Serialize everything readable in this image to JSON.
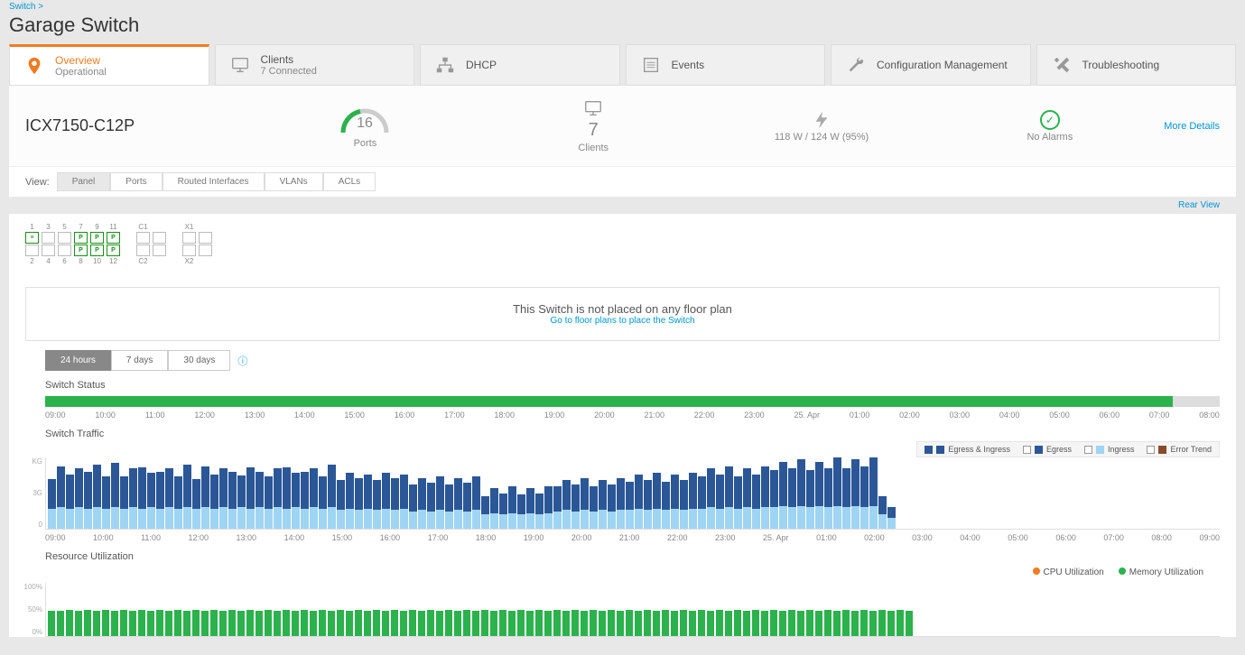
{
  "breadcrumb": {
    "parent": "Switch >"
  },
  "page_title": "Garage Switch",
  "tabs": [
    {
      "title": "Overview",
      "sub": "Operational",
      "icon": "location",
      "color": "#f47b20"
    },
    {
      "title": "Clients",
      "sub": "7 Connected",
      "icon": "monitor",
      "color": "#999"
    },
    {
      "title": "DHCP",
      "sub": "",
      "icon": "network",
      "color": "#999"
    },
    {
      "title": "Events",
      "sub": "",
      "icon": "list",
      "color": "#999"
    },
    {
      "title": "Configuration Management",
      "sub": "",
      "icon": "wrench",
      "color": "#999"
    },
    {
      "title": "Troubleshooting",
      "sub": "",
      "icon": "tools",
      "color": "#999"
    }
  ],
  "summary": {
    "model": "ICX7150-C12P",
    "ports": {
      "value": "16",
      "label": "Ports",
      "arc_color": "#2bb24c",
      "arc_bg": "#ccc",
      "arc_pct": 40
    },
    "clients": {
      "value": "7",
      "label": "Clients"
    },
    "power": {
      "text": "118 W / 124 W (95%)"
    },
    "alarms": {
      "text": "No Alarms"
    },
    "more": "More Details"
  },
  "view": {
    "label": "View:",
    "tabs": [
      "Panel",
      "Ports",
      "Routed Interfaces",
      "VLANs",
      "ACLs"
    ],
    "active": 0,
    "rear": "Rear View"
  },
  "ports_panel": {
    "top_labels": [
      "1",
      "3",
      "5",
      "7",
      "9",
      "11"
    ],
    "bot_labels": [
      "2",
      "4",
      "6",
      "8",
      "10",
      "12"
    ],
    "row1": [
      {
        "on": true,
        "t": "≡"
      },
      {
        "on": false
      },
      {
        "on": false
      },
      {
        "on": true,
        "t": "P"
      },
      {
        "on": true,
        "t": "P"
      },
      {
        "on": true,
        "t": "P"
      }
    ],
    "row2": [
      {
        "on": false
      },
      {
        "on": false
      },
      {
        "on": false
      },
      {
        "on": true,
        "t": "P"
      },
      {
        "on": true,
        "t": "P"
      },
      {
        "on": true,
        "t": "P"
      }
    ],
    "c": {
      "label_top": "C1",
      "label_bot": "C2",
      "r1": [
        {
          "on": false
        },
        {
          "on": false
        }
      ],
      "r2": [
        {
          "on": false
        },
        {
          "on": false
        }
      ]
    },
    "x": {
      "label_top": "X1",
      "label_bot": "X2",
      "r1": [
        {
          "on": false
        },
        {
          "on": false
        }
      ],
      "r2": [
        {
          "on": false
        },
        {
          "on": false
        }
      ]
    }
  },
  "floorplan": {
    "msg": "This Switch is not placed on any floor plan",
    "link": "Go to floor plans to place the Switch"
  },
  "time_tabs": {
    "options": [
      "24 hours",
      "7 days",
      "30 days"
    ],
    "active": 0
  },
  "status_chart": {
    "title": "Switch Status",
    "fill_color": "#2bb24c",
    "fill_pct": 96,
    "axis": [
      "09:00",
      "10:00",
      "11:00",
      "12:00",
      "13:00",
      "14:00",
      "15:00",
      "16:00",
      "17:00",
      "18:00",
      "19:00",
      "20:00",
      "21:00",
      "22:00",
      "23:00",
      "25. Apr",
      "01:00",
      "02:00",
      "03:00",
      "04:00",
      "05:00",
      "06:00",
      "07:00",
      "08:00"
    ]
  },
  "traffic_chart": {
    "title": "Switch Traffic",
    "y_unit": "KG",
    "y_ticks": [
      "KG",
      "3G",
      "0"
    ],
    "legend": [
      {
        "label": "Egress & Ingress",
        "color": "#2b5797",
        "checked": true
      },
      {
        "label": "Egress",
        "color": "#2b5797",
        "checked": false
      },
      {
        "label": "Ingress",
        "color": "#9fd4f3",
        "checked": false
      },
      {
        "label": "Error Trend",
        "color": "#8b4a2b",
        "checked": false
      }
    ],
    "colors": {
      "egress": "#2b5797",
      "ingress": "#9fd4f3"
    },
    "axis": [
      "09:00",
      "10:00",
      "11:00",
      "12:00",
      "13:00",
      "14:00",
      "15:00",
      "16:00",
      "17:00",
      "18:00",
      "19:00",
      "20:00",
      "21:00",
      "22:00",
      "23:00",
      "25. Apr",
      "01:00",
      "02:00",
      "03:00",
      "04:00",
      "05:00",
      "06:00",
      "07:00",
      "08:00",
      "09:00"
    ],
    "bars": [
      {
        "e": 42,
        "i": 28
      },
      {
        "e": 58,
        "i": 30
      },
      {
        "e": 48,
        "i": 28
      },
      {
        "e": 55,
        "i": 30
      },
      {
        "e": 52,
        "i": 28
      },
      {
        "e": 60,
        "i": 30
      },
      {
        "e": 45,
        "i": 28
      },
      {
        "e": 62,
        "i": 30
      },
      {
        "e": 45,
        "i": 28
      },
      {
        "e": 55,
        "i": 30
      },
      {
        "e": 58,
        "i": 28
      },
      {
        "e": 48,
        "i": 30
      },
      {
        "e": 52,
        "i": 28
      },
      {
        "e": 55,
        "i": 30
      },
      {
        "e": 45,
        "i": 28
      },
      {
        "e": 60,
        "i": 30
      },
      {
        "e": 42,
        "i": 28
      },
      {
        "e": 58,
        "i": 30
      },
      {
        "e": 48,
        "i": 28
      },
      {
        "e": 55,
        "i": 30
      },
      {
        "e": 52,
        "i": 28
      },
      {
        "e": 45,
        "i": 30
      },
      {
        "e": 58,
        "i": 28
      },
      {
        "e": 50,
        "i": 30
      },
      {
        "e": 45,
        "i": 28
      },
      {
        "e": 55,
        "i": 30
      },
      {
        "e": 58,
        "i": 28
      },
      {
        "e": 48,
        "i": 30
      },
      {
        "e": 52,
        "i": 28
      },
      {
        "e": 55,
        "i": 30
      },
      {
        "e": 45,
        "i": 28
      },
      {
        "e": 60,
        "i": 30
      },
      {
        "e": 42,
        "i": 26
      },
      {
        "e": 50,
        "i": 28
      },
      {
        "e": 45,
        "i": 26
      },
      {
        "e": 48,
        "i": 28
      },
      {
        "e": 42,
        "i": 26
      },
      {
        "e": 50,
        "i": 28
      },
      {
        "e": 45,
        "i": 26
      },
      {
        "e": 48,
        "i": 28
      },
      {
        "e": 38,
        "i": 24
      },
      {
        "e": 45,
        "i": 26
      },
      {
        "e": 40,
        "i": 24
      },
      {
        "e": 48,
        "i": 26
      },
      {
        "e": 38,
        "i": 24
      },
      {
        "e": 45,
        "i": 26
      },
      {
        "e": 40,
        "i": 24
      },
      {
        "e": 48,
        "i": 26
      },
      {
        "e": 25,
        "i": 20
      },
      {
        "e": 35,
        "i": 22
      },
      {
        "e": 30,
        "i": 20
      },
      {
        "e": 38,
        "i": 22
      },
      {
        "e": 28,
        "i": 20
      },
      {
        "e": 35,
        "i": 22
      },
      {
        "e": 30,
        "i": 20
      },
      {
        "e": 38,
        "i": 22
      },
      {
        "e": 35,
        "i": 24
      },
      {
        "e": 42,
        "i": 26
      },
      {
        "e": 38,
        "i": 24
      },
      {
        "e": 45,
        "i": 26
      },
      {
        "e": 35,
        "i": 24
      },
      {
        "e": 42,
        "i": 26
      },
      {
        "e": 38,
        "i": 24
      },
      {
        "e": 45,
        "i": 26
      },
      {
        "e": 40,
        "i": 26
      },
      {
        "e": 48,
        "i": 28
      },
      {
        "e": 42,
        "i": 26
      },
      {
        "e": 50,
        "i": 28
      },
      {
        "e": 40,
        "i": 26
      },
      {
        "e": 48,
        "i": 28
      },
      {
        "e": 42,
        "i": 26
      },
      {
        "e": 50,
        "i": 28
      },
      {
        "e": 45,
        "i": 28
      },
      {
        "e": 55,
        "i": 30
      },
      {
        "e": 48,
        "i": 28
      },
      {
        "e": 58,
        "i": 30
      },
      {
        "e": 45,
        "i": 28
      },
      {
        "e": 55,
        "i": 30
      },
      {
        "e": 48,
        "i": 28
      },
      {
        "e": 58,
        "i": 30
      },
      {
        "e": 52,
        "i": 30
      },
      {
        "e": 62,
        "i": 32
      },
      {
        "e": 55,
        "i": 30
      },
      {
        "e": 65,
        "i": 32
      },
      {
        "e": 52,
        "i": 30
      },
      {
        "e": 62,
        "i": 32
      },
      {
        "e": 55,
        "i": 30
      },
      {
        "e": 68,
        "i": 32
      },
      {
        "e": 55,
        "i": 30
      },
      {
        "e": 65,
        "i": 32
      },
      {
        "e": 58,
        "i": 30
      },
      {
        "e": 70,
        "i": 32
      },
      {
        "e": 25,
        "i": 20
      },
      {
        "e": 15,
        "i": 15
      }
    ]
  },
  "util_chart": {
    "title": "Resource Utilization",
    "legend": [
      {
        "label": "CPU Utilization",
        "color": "#f47b20"
      },
      {
        "label": "Memory Utilization",
        "color": "#2bb24c"
      }
    ],
    "y_ticks": [
      "100%",
      "50%",
      "0%"
    ],
    "color": "#2bb24c",
    "bars": [
      48,
      48,
      50,
      48,
      50,
      48,
      50,
      48,
      50,
      48,
      50,
      48,
      50,
      48,
      50,
      48,
      50,
      48,
      50,
      48,
      50,
      48,
      50,
      48,
      50,
      48,
      50,
      48,
      50,
      48,
      50,
      48,
      50,
      48,
      50,
      48,
      50,
      48,
      50,
      48,
      50,
      48,
      50,
      48,
      50,
      48,
      50,
      48,
      50,
      48,
      50,
      48,
      50,
      48,
      50,
      48,
      50,
      48,
      50,
      48,
      50,
      48,
      50,
      48,
      50,
      48,
      50,
      48,
      50,
      48,
      50,
      48,
      50,
      48,
      50,
      48,
      50,
      48,
      50,
      48,
      50,
      48,
      50,
      48,
      50,
      48,
      50,
      48,
      50,
      48,
      50,
      48,
      50,
      48,
      50,
      48
    ]
  }
}
